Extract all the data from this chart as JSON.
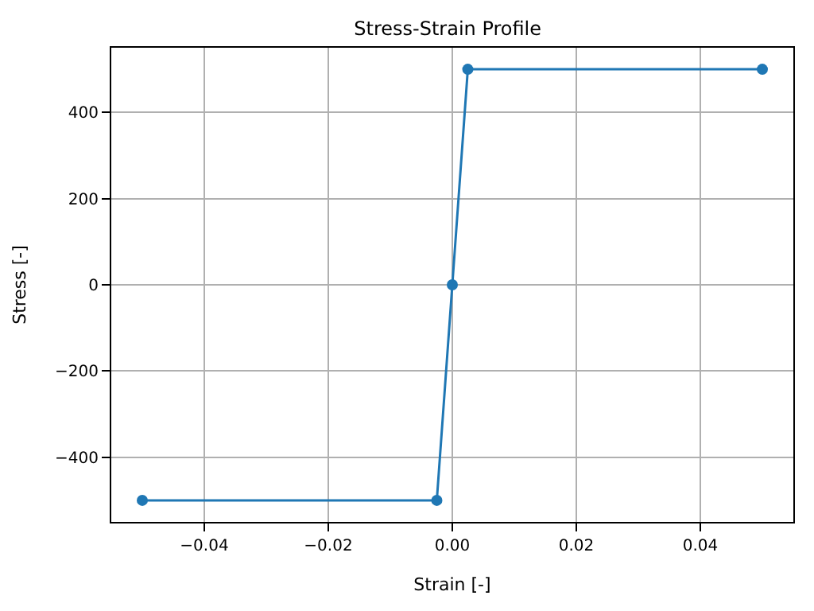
{
  "chart_data": {
    "type": "line",
    "title": "Stress-Strain Profile",
    "xlabel": "Strain [-]",
    "ylabel": "Stress [-]",
    "x": [
      -0.05,
      -0.0025,
      0,
      0.0025,
      0.05
    ],
    "series": [
      {
        "color": "#1f77b4",
        "values": [
          -500,
          -500,
          0,
          500,
          500
        ]
      }
    ],
    "xlim": [
      -0.055,
      0.055
    ],
    "ylim": [
      -550,
      550
    ],
    "xticks": [
      {
        "value": -0.04,
        "label": "−0.04"
      },
      {
        "value": -0.02,
        "label": "−0.02"
      },
      {
        "value": 0,
        "label": "0.00"
      },
      {
        "value": 0.02,
        "label": "0.02"
      },
      {
        "value": 0.04,
        "label": "0.04"
      }
    ],
    "yticks": [
      {
        "value": -400,
        "label": "−400"
      },
      {
        "value": -200,
        "label": "−200"
      },
      0,
      200,
      400
    ],
    "grid": true,
    "marker": "circle",
    "line_style": "solid"
  }
}
